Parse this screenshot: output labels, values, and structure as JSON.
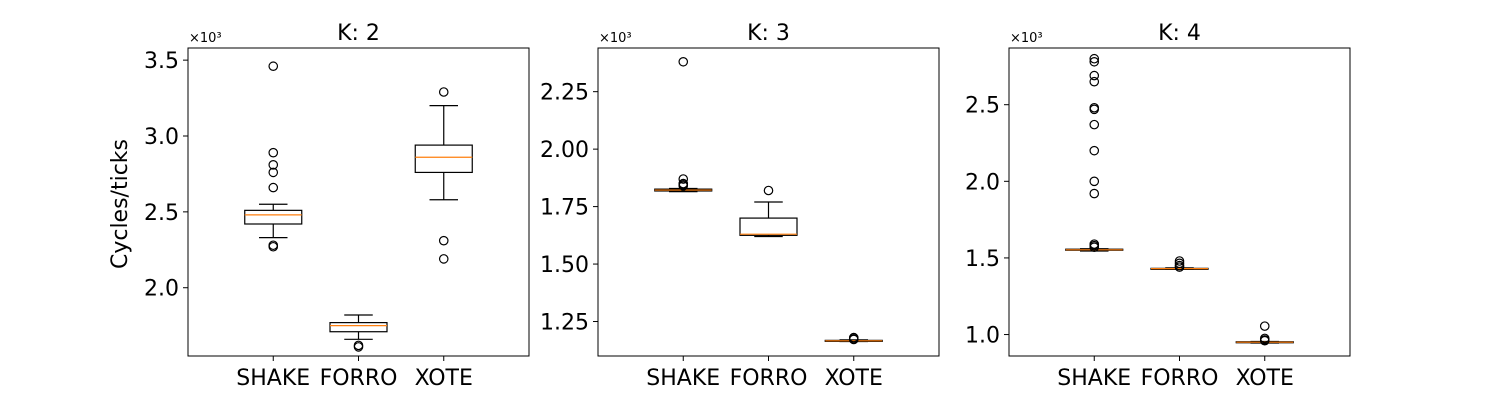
{
  "figure": {
    "ylabel": "Cycles/ticks"
  },
  "chart_data": [
    {
      "type": "boxplot",
      "title": "K: 2",
      "ylabel": "Cycles/ticks",
      "scale_label": "×10³",
      "ylim": [
        1.55,
        3.58
      ],
      "yticks": [
        2.0,
        2.5,
        3.0,
        3.5
      ],
      "ytick_labels": [
        "2.0",
        "2.5",
        "3.0",
        "3.5"
      ],
      "categories": [
        "SHAKE",
        "FORRO",
        "XOTE"
      ],
      "boxes": [
        {
          "name": "SHAKE",
          "whislo": 2.33,
          "q1": 2.42,
          "median": 2.48,
          "q3": 2.51,
          "whishi": 2.55,
          "fliers": [
            3.46,
            2.89,
            2.81,
            2.76,
            2.66,
            2.28,
            2.27
          ]
        },
        {
          "name": "FORRO",
          "whislo": 1.66,
          "q1": 1.71,
          "median": 1.75,
          "q3": 1.77,
          "whishi": 1.82,
          "fliers": [
            1.62,
            1.61
          ]
        },
        {
          "name": "XOTE",
          "whislo": 2.58,
          "q1": 2.76,
          "median": 2.86,
          "q3": 2.94,
          "whishi": 3.2,
          "fliers": [
            3.29,
            2.31,
            2.19
          ]
        }
      ]
    },
    {
      "type": "boxplot",
      "title": "K: 3",
      "ylabel": "",
      "scale_label": "×10³",
      "ylim": [
        1.1,
        2.44
      ],
      "yticks": [
        1.25,
        1.5,
        1.75,
        2.0,
        2.25
      ],
      "ytick_labels": [
        "1.25",
        "1.50",
        "1.75",
        "2.00",
        "2.25"
      ],
      "categories": [
        "SHAKE",
        "FORRO",
        "XOTE"
      ],
      "boxes": [
        {
          "name": "SHAKE",
          "whislo": 1.815,
          "q1": 1.818,
          "median": 1.822,
          "q3": 1.826,
          "whishi": 1.829,
          "fliers": [
            2.38,
            1.87,
            1.85,
            1.845,
            1.84
          ]
        },
        {
          "name": "FORRO",
          "whislo": 1.62,
          "q1": 1.625,
          "median": 1.63,
          "q3": 1.7,
          "whishi": 1.77,
          "fliers": [
            1.82
          ]
        },
        {
          "name": "XOTE",
          "whislo": 1.163,
          "q1": 1.165,
          "median": 1.166,
          "q3": 1.168,
          "whishi": 1.17,
          "fliers": [
            1.18,
            1.175,
            1.172
          ]
        }
      ]
    },
    {
      "type": "boxplot",
      "title": "K: 4",
      "ylabel": "",
      "scale_label": "×10³",
      "ylim": [
        0.86,
        2.87
      ],
      "yticks": [
        1.0,
        1.5,
        2.0,
        2.5
      ],
      "ytick_labels": [
        "1.0",
        "1.5",
        "2.0",
        "2.5"
      ],
      "categories": [
        "SHAKE",
        "FORRO",
        "XOTE"
      ],
      "boxes": [
        {
          "name": "SHAKE",
          "whislo": 1.545,
          "q1": 1.55,
          "median": 1.553,
          "q3": 1.557,
          "whishi": 1.56,
          "fliers": [
            2.8,
            2.78,
            2.69,
            2.65,
            2.48,
            2.47,
            2.37,
            2.2,
            2.0,
            1.92,
            1.59,
            1.58,
            1.57
          ]
        },
        {
          "name": "FORRO",
          "whislo": 1.425,
          "q1": 1.428,
          "median": 1.43,
          "q3": 1.432,
          "whishi": 1.435,
          "fliers": [
            1.48,
            1.465,
            1.45,
            1.44
          ]
        },
        {
          "name": "XOTE",
          "whislo": 0.945,
          "q1": 0.948,
          "median": 0.95,
          "q3": 0.953,
          "whishi": 0.955,
          "fliers": [
            1.055,
            0.975,
            0.965,
            0.96
          ]
        }
      ]
    }
  ]
}
